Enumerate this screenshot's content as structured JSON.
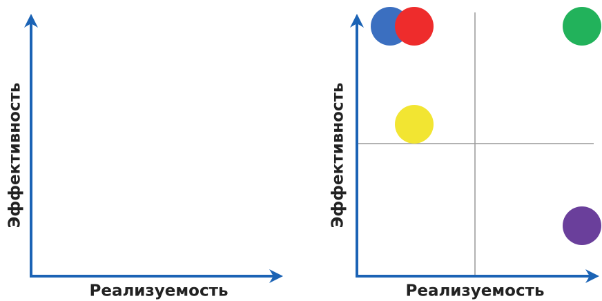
{
  "panels": [
    {
      "x_label": "Реализуемость",
      "y_label": "Эффективность"
    },
    {
      "x_label": "Реализуемость",
      "y_label": "Эффективность"
    }
  ]
}
